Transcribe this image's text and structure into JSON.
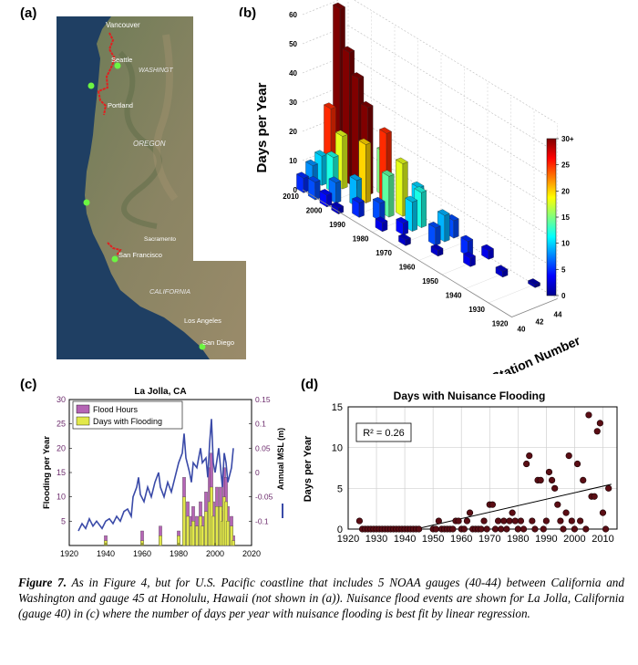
{
  "panels": {
    "a": "(a)",
    "b": "(b)",
    "c": "(c)",
    "d": "(d)"
  },
  "caption": {
    "figure_label": "Figure 7.",
    "text": "As in Figure 4, but for U.S. Pacific coastline that includes 5 NOAA gauges (40-44) between California and Washington and gauge 45 at Honolulu, Hawaii (not shown in (a)). Nuisance flood events are shown for La Jolla, California (gauge 40) in (c) where the number of days per year with nuisance flooding is best fit by linear regression."
  },
  "map": {
    "labels": {
      "vancouver": "Vancouver",
      "seattle": "Seattle",
      "washington": "WASHINGT",
      "portland": "Portland",
      "oregon": "OREGON",
      "sacramento": "Sacramento",
      "san_francisco": "San Francisco",
      "california": "CALIFORNIA",
      "los_angeles": "Los Angeles",
      "san_diego": "San Diego"
    },
    "colors": {
      "ocean": "#1f3f63",
      "land": "#6b7a55",
      "coast_track": "#e02020",
      "gauge": "#6cf542"
    }
  },
  "chart_data": [
    {
      "id": "b",
      "type": "bar",
      "projection": "3d",
      "title": "",
      "ylabel": "Days per Year",
      "depth_label": "Station Number",
      "z_ticks": [
        0,
        10,
        20,
        30,
        40,
        50,
        60
      ],
      "year_ticks": [
        2010,
        2000,
        1990,
        1980,
        1970,
        1960,
        1950,
        1940,
        1930,
        1920
      ],
      "station_ticks": [
        40,
        42,
        44
      ],
      "colorbar": {
        "ticks": [
          "0",
          "5",
          "10",
          "15",
          "20",
          "25",
          "30+"
        ],
        "range": [
          0,
          30
        ]
      },
      "stations": [
        {
          "station": 40,
          "series": [
            [
              1995,
              2
            ],
            [
              2000,
              4
            ],
            [
              2005,
              6
            ],
            [
              2010,
              5
            ]
          ]
        },
        {
          "station": 41,
          "series": [
            [
              1970,
              2
            ],
            [
              1980,
              3
            ],
            [
              1990,
              5
            ],
            [
              2000,
              7
            ],
            [
              2010,
              8
            ]
          ]
        },
        {
          "station": 42,
          "series": [
            [
              1960,
              2
            ],
            [
              1975,
              4
            ],
            [
              1985,
              6
            ],
            [
              1995,
              9
            ],
            [
              2005,
              12
            ],
            [
              2010,
              10
            ]
          ]
        },
        {
          "station": 43,
          "series": [
            [
              1950,
              3
            ],
            [
              1965,
              6
            ],
            [
              1975,
              10
            ],
            [
              1985,
              14
            ],
            [
              1995,
              20
            ],
            [
              2005,
              18
            ],
            [
              2010,
              25
            ]
          ]
        },
        {
          "station": 44,
          "series": [
            [
              1940,
              2
            ],
            [
              1955,
              5
            ],
            [
              1965,
              9
            ],
            [
              1975,
              12
            ],
            [
              1983,
              18
            ],
            [
              1990,
              25
            ],
            [
              1998,
              30
            ],
            [
              2002,
              38
            ],
            [
              2006,
              45
            ],
            [
              2010,
              58
            ]
          ]
        },
        {
          "station": 45,
          "series": [
            [
              1930,
              1
            ],
            [
              1950,
              3
            ],
            [
              1965,
              6
            ],
            [
              1980,
              10
            ],
            [
              1995,
              15
            ],
            [
              2010,
              22
            ]
          ]
        }
      ]
    },
    {
      "id": "c",
      "type": "bar",
      "title": "La Jolla, CA",
      "ylabel": "Flooding per Year",
      "y2label": "Annual MSL (m)",
      "xlim": [
        1920,
        2020
      ],
      "ylim": [
        0,
        30
      ],
      "y2lim": [
        -0.15,
        0.15
      ],
      "x_ticks": [
        1920,
        1940,
        1960,
        1980,
        2000,
        2020
      ],
      "y_ticks": [
        5,
        10,
        15,
        20,
        25,
        30
      ],
      "y2_ticks": [
        "-0.1",
        "-0.05",
        "0",
        "0.05",
        "0.1",
        "0.15"
      ],
      "legend": [
        "Flood Hours",
        "Days with Flooding"
      ],
      "colors": {
        "flood_hours": "#b565b5",
        "days_with_flooding": "#e2e84a",
        "msl": "#3a4aa8"
      },
      "flood_hours": [
        [
          1940,
          2
        ],
        [
          1960,
          3
        ],
        [
          1970,
          4
        ],
        [
          1980,
          3
        ],
        [
          1983,
          14
        ],
        [
          1985,
          9
        ],
        [
          1987,
          6
        ],
        [
          1988,
          8
        ],
        [
          1990,
          6
        ],
        [
          1992,
          9
        ],
        [
          1993,
          6
        ],
        [
          1995,
          11
        ],
        [
          1997,
          16
        ],
        [
          1998,
          19
        ],
        [
          1999,
          9
        ],
        [
          2001,
          12
        ],
        [
          2003,
          12
        ],
        [
          2004,
          7
        ],
        [
          2005,
          16
        ],
        [
          2006,
          14
        ],
        [
          2007,
          8
        ],
        [
          2009,
          6
        ],
        [
          2010,
          2
        ]
      ],
      "days_with_flooding": [
        [
          1940,
          1
        ],
        [
          1960,
          1
        ],
        [
          1970,
          2
        ],
        [
          1980,
          2
        ],
        [
          1983,
          10
        ],
        [
          1985,
          6
        ],
        [
          1987,
          4
        ],
        [
          1988,
          5
        ],
        [
          1990,
          4
        ],
        [
          1992,
          6
        ],
        [
          1993,
          4
        ],
        [
          1995,
          7
        ],
        [
          1997,
          9
        ],
        [
          1998,
          12
        ],
        [
          1999,
          6
        ],
        [
          2001,
          8
        ],
        [
          2003,
          8
        ],
        [
          2004,
          5
        ],
        [
          2005,
          10
        ],
        [
          2006,
          9
        ],
        [
          2007,
          5
        ],
        [
          2009,
          4
        ],
        [
          2010,
          1
        ]
      ],
      "msl": [
        [
          1925,
          -0.12
        ],
        [
          1927,
          -0.105
        ],
        [
          1929,
          -0.115
        ],
        [
          1931,
          -0.095
        ],
        [
          1933,
          -0.11
        ],
        [
          1935,
          -0.1
        ],
        [
          1938,
          -0.115
        ],
        [
          1940,
          -0.1
        ],
        [
          1942,
          -0.095
        ],
        [
          1944,
          -0.105
        ],
        [
          1946,
          -0.09
        ],
        [
          1948,
          -0.1
        ],
        [
          1950,
          -0.08
        ],
        [
          1952,
          -0.075
        ],
        [
          1954,
          -0.09
        ],
        [
          1955,
          -0.05
        ],
        [
          1957,
          -0.03
        ],
        [
          1958,
          -0.01
        ],
        [
          1959,
          -0.045
        ],
        [
          1961,
          -0.06
        ],
        [
          1963,
          -0.03
        ],
        [
          1965,
          -0.05
        ],
        [
          1967,
          -0.02
        ],
        [
          1969,
          0.0
        ],
        [
          1970,
          -0.03
        ],
        [
          1972,
          -0.05
        ],
        [
          1974,
          -0.02
        ],
        [
          1976,
          -0.04
        ],
        [
          1978,
          -0.01
        ],
        [
          1980,
          0.02
        ],
        [
          1982,
          0.04
        ],
        [
          1983,
          0.08
        ],
        [
          1984,
          0.03
        ],
        [
          1986,
          0.0
        ],
        [
          1987,
          -0.02
        ],
        [
          1988,
          0.02
        ],
        [
          1990,
          0.01
        ],
        [
          1992,
          0.05
        ],
        [
          1993,
          0.02
        ],
        [
          1995,
          0.03
        ],
        [
          1996,
          -0.01
        ],
        [
          1997,
          0.06
        ],
        [
          1998,
          0.11
        ],
        [
          1999,
          0.02
        ],
        [
          2000,
          0.0
        ],
        [
          2002,
          0.05
        ],
        [
          2003,
          0.01
        ],
        [
          2004,
          -0.03
        ],
        [
          2005,
          0.04
        ],
        [
          2006,
          0.02
        ],
        [
          2007,
          -0.02
        ],
        [
          2009,
          0.01
        ],
        [
          2010,
          0.05
        ]
      ]
    },
    {
      "id": "d",
      "type": "scatter",
      "title": "Days with Nuisance Flooding",
      "xlabel": "",
      "ylabel": "Days per Year",
      "xlim": [
        1920,
        2015
      ],
      "ylim": [
        0,
        15
      ],
      "x_ticks": [
        1920,
        1930,
        1940,
        1950,
        1960,
        1970,
        1980,
        1990,
        2000,
        2010
      ],
      "y_ticks": [
        0,
        5,
        10,
        15
      ],
      "annotation": "R² = 0.26",
      "marker_color": "#5a0d14",
      "fit_line": [
        [
          1925,
          -1.5
        ],
        [
          2013,
          5.5
        ]
      ],
      "points": [
        [
          1924,
          1
        ],
        [
          1925,
          0
        ],
        [
          1926,
          0
        ],
        [
          1927,
          0
        ],
        [
          1928,
          0
        ],
        [
          1929,
          0
        ],
        [
          1930,
          0
        ],
        [
          1931,
          0
        ],
        [
          1932,
          0
        ],
        [
          1933,
          0
        ],
        [
          1934,
          0
        ],
        [
          1935,
          0
        ],
        [
          1936,
          0
        ],
        [
          1937,
          0
        ],
        [
          1938,
          0
        ],
        [
          1939,
          0
        ],
        [
          1940,
          0
        ],
        [
          1941,
          0
        ],
        [
          1942,
          0
        ],
        [
          1943,
          0
        ],
        [
          1944,
          0
        ],
        [
          1945,
          0
        ],
        [
          1950,
          0
        ],
        [
          1951,
          0
        ],
        [
          1952,
          1
        ],
        [
          1953,
          0
        ],
        [
          1954,
          0
        ],
        [
          1955,
          0
        ],
        [
          1956,
          0
        ],
        [
          1957,
          0
        ],
        [
          1958,
          1
        ],
        [
          1959,
          1
        ],
        [
          1960,
          0
        ],
        [
          1961,
          0
        ],
        [
          1962,
          1
        ],
        [
          1963,
          2
        ],
        [
          1964,
          0
        ],
        [
          1965,
          0
        ],
        [
          1966,
          0
        ],
        [
          1967,
          0
        ],
        [
          1968,
          1
        ],
        [
          1969,
          0
        ],
        [
          1970,
          3
        ],
        [
          1971,
          3
        ],
        [
          1972,
          0
        ],
        [
          1973,
          1
        ],
        [
          1974,
          0
        ],
        [
          1975,
          1
        ],
        [
          1976,
          0
        ],
        [
          1977,
          1
        ],
        [
          1978,
          2
        ],
        [
          1979,
          1
        ],
        [
          1980,
          0
        ],
        [
          1981,
          1
        ],
        [
          1982,
          0
        ],
        [
          1983,
          8
        ],
        [
          1984,
          9
        ],
        [
          1985,
          1
        ],
        [
          1986,
          0
        ],
        [
          1987,
          6
        ],
        [
          1988,
          6
        ],
        [
          1989,
          0
        ],
        [
          1990,
          1
        ],
        [
          1991,
          7
        ],
        [
          1992,
          6
        ],
        [
          1993,
          5
        ],
        [
          1994,
          3
        ],
        [
          1995,
          1
        ],
        [
          1996,
          0
        ],
        [
          1997,
          2
        ],
        [
          1998,
          9
        ],
        [
          1999,
          1
        ],
        [
          2000,
          0
        ],
        [
          2001,
          8
        ],
        [
          2002,
          1
        ],
        [
          2003,
          6
        ],
        [
          2004,
          0
        ],
        [
          2005,
          14
        ],
        [
          2006,
          4
        ],
        [
          2007,
          4
        ],
        [
          2008,
          12
        ],
        [
          2009,
          13
        ],
        [
          2010,
          2
        ],
        [
          2011,
          0
        ],
        [
          2012,
          5
        ]
      ]
    }
  ]
}
